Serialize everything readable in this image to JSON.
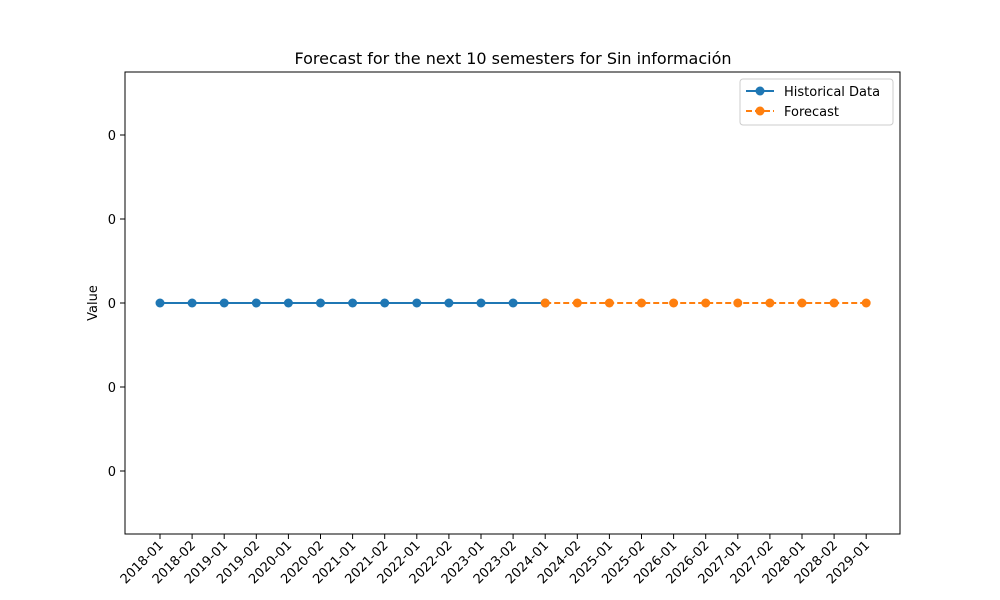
{
  "chart_data": {
    "type": "line",
    "title": "Forecast for the next 10 semesters for Sin información",
    "xlabel": "",
    "ylabel": "Value",
    "categories": [
      "2018-01",
      "2018-02",
      "2019-01",
      "2019-02",
      "2020-01",
      "2020-02",
      "2021-01",
      "2021-02",
      "2022-01",
      "2022-02",
      "2023-01",
      "2023-02",
      "2024-01",
      "2024-02",
      "2025-01",
      "2025-02",
      "2026-01",
      "2026-02",
      "2027-01",
      "2027-02",
      "2028-01",
      "2028-02",
      "2029-01"
    ],
    "y_tick_labels": [
      "0",
      "0",
      "0",
      "0",
      "0"
    ],
    "grid": false,
    "legend_position": "top-right",
    "series": [
      {
        "name": "Historical Data",
        "color": "#1f77b4",
        "line_style": "solid",
        "marker": "circle",
        "x": [
          "2018-01",
          "2018-02",
          "2019-01",
          "2019-02",
          "2020-01",
          "2020-02",
          "2021-01",
          "2021-02",
          "2022-01",
          "2022-02",
          "2023-01",
          "2023-02",
          "2024-01"
        ],
        "values": [
          0,
          0,
          0,
          0,
          0,
          0,
          0,
          0,
          0,
          0,
          0,
          0,
          0
        ]
      },
      {
        "name": "Forecast",
        "color": "#ff7f0e",
        "line_style": "dashed",
        "marker": "circle",
        "x": [
          "2024-01",
          "2024-02",
          "2025-01",
          "2025-02",
          "2026-01",
          "2026-02",
          "2027-01",
          "2027-02",
          "2028-01",
          "2028-02",
          "2029-01"
        ],
        "values": [
          0,
          0,
          0,
          0,
          0,
          0,
          0,
          0,
          0,
          0,
          0
        ]
      }
    ]
  }
}
